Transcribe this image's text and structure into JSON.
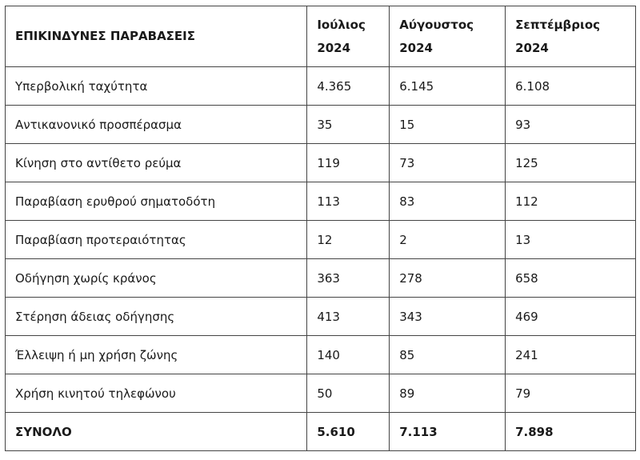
{
  "table": {
    "headers": [
      {
        "line1": "ΕΠΙΚΙΝΔΥΝΕΣ ΠΑΡΑΒΑΣΕΙΣ",
        "line2": ""
      },
      {
        "line1": "Ιούλιος",
        "line2": "2024"
      },
      {
        "line1": "Αύγουστος",
        "line2": "2024"
      },
      {
        "line1": "Σεπτέμβριος",
        "line2": "2024"
      }
    ],
    "rows": [
      [
        "Υπερβολική ταχύτητα",
        "4.365",
        "6.145",
        "6.108"
      ],
      [
        "Αντικανονικό προσπέρασμα",
        "35",
        "15",
        "93"
      ],
      [
        "Κίνηση στο αντίθετο ρεύμα",
        "119",
        "73",
        "125"
      ],
      [
        "Παραβίαση ερυθρού σηματοδότη",
        "113",
        "83",
        "112"
      ],
      [
        "Παραβίαση προτεραιότητας",
        "12",
        "2",
        "13"
      ],
      [
        "Οδήγηση χωρίς κράνος",
        "363",
        "278",
        "658"
      ],
      [
        "Στέρηση άδειας οδήγησης",
        "413",
        "343",
        "469"
      ],
      [
        "Έλλειψη ή μη χρήση ζώνης",
        "140",
        "85",
        "241"
      ],
      [
        "Χρήση κινητού τηλεφώνου",
        "50",
        "89",
        "79"
      ]
    ],
    "total": [
      "ΣΥΝΟΛΟ",
      "5.610",
      "7.113",
      "7.898"
    ]
  }
}
